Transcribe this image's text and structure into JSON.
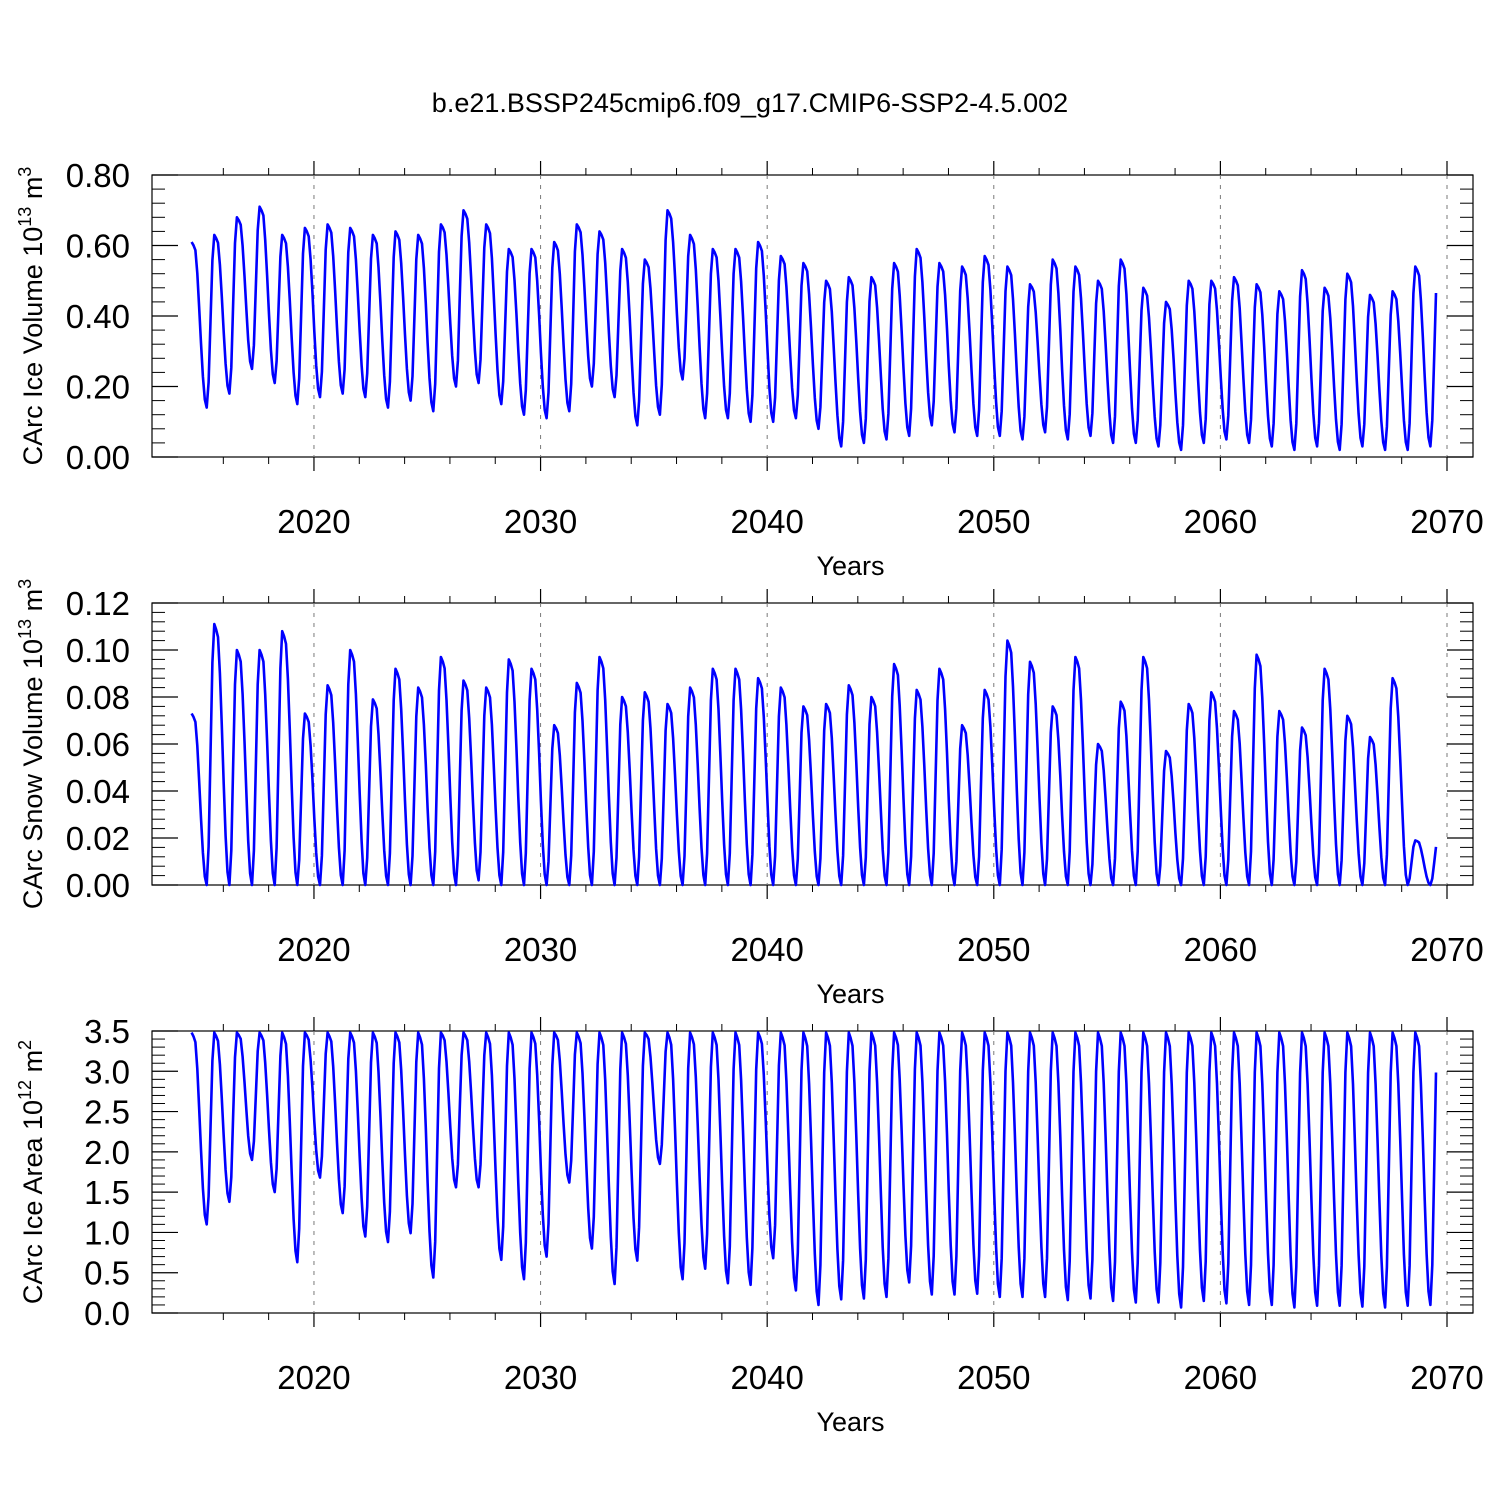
{
  "title": "b.e21.BSSP245cmip6.f09_g17.CMIP6-SSP2-4.5.002",
  "line_color": "#0000ff",
  "grid_color": "#7a7a7a",
  "chart_data": [
    {
      "type": "line",
      "ylabel": {
        "prefix": "CArc Ice Volume 10",
        "exponent": "13",
        "suffix": " m",
        "unit_exponent": "3"
      },
      "xlabel": "Years",
      "xlim": [
        2014,
        2070
      ],
      "ylim": [
        0,
        0.8
      ],
      "yticks": [
        0,
        0.2,
        0.4,
        0.6,
        0.8
      ],
      "ytick_labels": [
        "0.00",
        "0.20",
        "0.40",
        "0.60",
        "0.80"
      ],
      "xticks": [
        2020,
        2030,
        2040,
        2050,
        2060,
        2070
      ],
      "xtick_labels": [
        "2020",
        "2030",
        "2040",
        "2050",
        "2060",
        "2070"
      ],
      "grid": "vertical dashed at major x ticks",
      "series": [
        {
          "x_start": 2015.0,
          "x_step": 1.0,
          "annual_max": [
            0.61,
            0.63,
            0.68,
            0.71,
            0.63,
            0.65,
            0.66,
            0.65,
            0.63,
            0.64,
            0.63,
            0.66,
            0.7,
            0.66,
            0.59,
            0.59,
            0.61,
            0.66,
            0.64,
            0.59,
            0.56,
            0.7,
            0.63,
            0.59,
            0.59,
            0.61,
            0.57,
            0.55,
            0.5,
            0.51,
            0.51,
            0.55,
            0.59,
            0.55,
            0.54,
            0.57,
            0.54,
            0.49,
            0.56,
            0.54,
            0.5,
            0.56,
            0.48,
            0.44,
            0.5,
            0.5,
            0.51,
            0.49,
            0.47,
            0.53,
            0.48,
            0.52,
            0.46,
            0.47,
            0.54
          ],
          "annual_min": [
            0.14,
            0.18,
            0.25,
            0.21,
            0.15,
            0.17,
            0.18,
            0.17,
            0.14,
            0.16,
            0.13,
            0.2,
            0.21,
            0.15,
            0.12,
            0.11,
            0.13,
            0.2,
            0.17,
            0.09,
            0.12,
            0.22,
            0.11,
            0.11,
            0.1,
            0.1,
            0.11,
            0.08,
            0.03,
            0.04,
            0.05,
            0.06,
            0.09,
            0.07,
            0.06,
            0.06,
            0.05,
            0.07,
            0.05,
            0.06,
            0.04,
            0.04,
            0.03,
            0.02,
            0.04,
            0.05,
            0.04,
            0.03,
            0.02,
            0.03,
            0.02,
            0.03,
            0.02,
            0.02,
            0.03
          ]
        }
      ]
    },
    {
      "type": "line",
      "ylabel": {
        "prefix": "CArc Snow Volume 10",
        "exponent": "13",
        "suffix": " m",
        "unit_exponent": "3"
      },
      "xlabel": "Years",
      "xlim": [
        2014,
        2070
      ],
      "ylim": [
        0,
        0.12
      ],
      "yticks": [
        0,
        0.02,
        0.04,
        0.06,
        0.08,
        0.1,
        0.12
      ],
      "ytick_labels": [
        "0.00",
        "0.02",
        "0.04",
        "0.06",
        "0.08",
        "0.10",
        "0.12"
      ],
      "xticks": [
        2020,
        2030,
        2040,
        2050,
        2060,
        2070
      ],
      "xtick_labels": [
        "2020",
        "2030",
        "2040",
        "2050",
        "2060",
        "2070"
      ],
      "grid": "vertical dashed at major x ticks",
      "series": [
        {
          "x_start": 2015.0,
          "x_step": 1.0,
          "annual_max": [
            0.073,
            0.111,
            0.1,
            0.1,
            0.108,
            0.073,
            0.085,
            0.1,
            0.079,
            0.092,
            0.084,
            0.097,
            0.087,
            0.084,
            0.096,
            0.092,
            0.068,
            0.086,
            0.097,
            0.08,
            0.082,
            0.077,
            0.084,
            0.092,
            0.092,
            0.088,
            0.084,
            0.076,
            0.077,
            0.085,
            0.08,
            0.094,
            0.083,
            0.092,
            0.068,
            0.083,
            0.104,
            0.095,
            0.076,
            0.097,
            0.06,
            0.078,
            0.097,
            0.057,
            0.077,
            0.082,
            0.074,
            0.098,
            0.074,
            0.067,
            0.092,
            0.072,
            0.063,
            0.088,
            0.019
          ],
          "annual_min": [
            0.0,
            0.0,
            0.0,
            0.0,
            0.0,
            0.0,
            0.0,
            0.0,
            0.0,
            0.0,
            0.0,
            0.0,
            0.002,
            0.0,
            0.0,
            0.0,
            0.0,
            0.0,
            0.0,
            0.0,
            0.0,
            0.0,
            0.0,
            0.0,
            0.0,
            0.0,
            0.0,
            0.0,
            0.0,
            0.0,
            0.0,
            0.0,
            0.0,
            0.0,
            0.0,
            0.0,
            0.0,
            0.0,
            0.0,
            0.0,
            0.0,
            0.0,
            0.0,
            0.0,
            0.0,
            0.0,
            0.0,
            0.0,
            0.0,
            0.0,
            0.0,
            0.0,
            0.0,
            0.0,
            0.0
          ]
        }
      ]
    },
    {
      "type": "line",
      "ylabel": {
        "prefix": "CArc Ice Area 10",
        "exponent": "12",
        "suffix": " m",
        "unit_exponent": "2"
      },
      "xlabel": "Years",
      "xlim": [
        2014,
        2070
      ],
      "ylim": [
        0,
        3.5
      ],
      "yticks": [
        0,
        0.5,
        1.0,
        1.5,
        2.0,
        2.5,
        3.0,
        3.5
      ],
      "ytick_labels": [
        "0.0",
        "0.5",
        "1.0",
        "1.5",
        "2.0",
        "2.5",
        "3.0",
        "3.5"
      ],
      "xticks": [
        2020,
        2030,
        2040,
        2050,
        2060,
        2070
      ],
      "xtick_labels": [
        "2020",
        "2030",
        "2040",
        "2050",
        "2060",
        "2070"
      ],
      "grid": "vertical dashed at major x ticks",
      "series": [
        {
          "x_start": 2015.0,
          "x_step": 1.0,
          "annual_max": [
            3.48,
            3.48,
            3.48,
            3.48,
            3.48,
            3.48,
            3.48,
            3.48,
            3.48,
            3.48,
            3.48,
            3.48,
            3.48,
            3.48,
            3.48,
            3.48,
            3.48,
            3.48,
            3.48,
            3.48,
            3.48,
            3.48,
            3.48,
            3.48,
            3.48,
            3.48,
            3.48,
            3.48,
            3.48,
            3.48,
            3.48,
            3.48,
            3.48,
            3.48,
            3.48,
            3.48,
            3.48,
            3.48,
            3.48,
            3.48,
            3.48,
            3.48,
            3.48,
            3.48,
            3.48,
            3.48,
            3.48,
            3.48,
            3.48,
            3.48,
            3.48,
            3.48,
            3.48,
            3.48,
            3.48
          ],
          "annual_min": [
            1.1,
            1.38,
            1.9,
            1.5,
            0.63,
            1.68,
            1.24,
            0.95,
            0.88,
            0.99,
            0.44,
            1.56,
            1.56,
            0.66,
            0.42,
            0.7,
            1.62,
            0.8,
            0.36,
            0.65,
            1.85,
            0.42,
            0.55,
            0.37,
            0.35,
            0.68,
            0.28,
            0.1,
            0.17,
            0.18,
            0.2,
            0.38,
            0.23,
            0.23,
            0.24,
            0.2,
            0.2,
            0.2,
            0.16,
            0.18,
            0.15,
            0.13,
            0.13,
            0.07,
            0.15,
            0.12,
            0.1,
            0.1,
            0.07,
            0.09,
            0.09,
            0.08,
            0.07,
            0.09,
            0.1
          ]
        }
      ]
    }
  ]
}
